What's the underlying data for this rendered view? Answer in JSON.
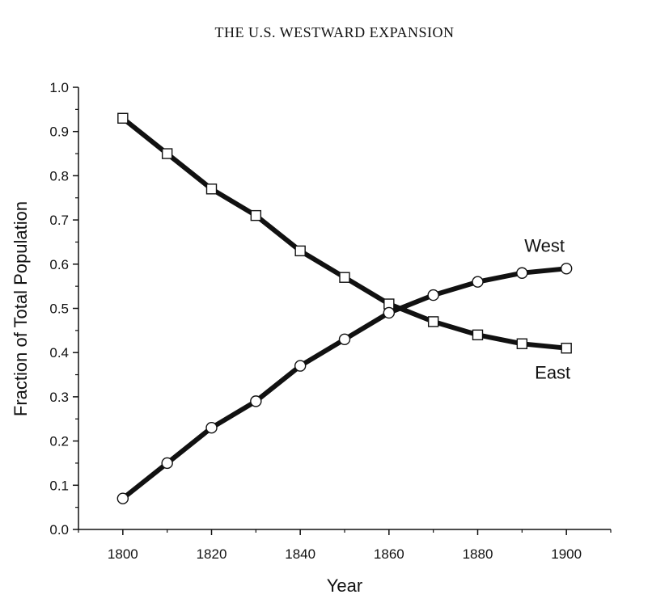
{
  "chart_data": {
    "type": "line",
    "title": "THE U.S. WESTWARD EXPANSION",
    "xlabel": "Year",
    "ylabel": "Fraction of Total Population",
    "xlim": [
      1790,
      1910
    ],
    "ylim": [
      0.0,
      1.0
    ],
    "x_ticks": [
      "1800",
      "1820",
      "1840",
      "1860",
      "1880",
      "1900"
    ],
    "y_ticks": [
      "0.0",
      "0.1",
      "0.2",
      "0.3",
      "0.4",
      "0.5",
      "0.6",
      "0.7",
      "0.8",
      "0.9",
      "1.0"
    ],
    "x": [
      1800,
      1810,
      1820,
      1830,
      1840,
      1850,
      1860,
      1870,
      1880,
      1890,
      1900
    ],
    "series": [
      {
        "name": "East",
        "marker": "square",
        "values": [
          0.93,
          0.85,
          0.77,
          0.71,
          0.63,
          0.57,
          0.51,
          0.47,
          0.44,
          0.42,
          0.41
        ]
      },
      {
        "name": "West",
        "marker": "circle",
        "values": [
          0.07,
          0.15,
          0.23,
          0.29,
          0.37,
          0.43,
          0.49,
          0.53,
          0.56,
          0.58,
          0.59
        ]
      }
    ],
    "grid": false,
    "legend": "inline labels at right end of series",
    "line_color": "#111111"
  }
}
